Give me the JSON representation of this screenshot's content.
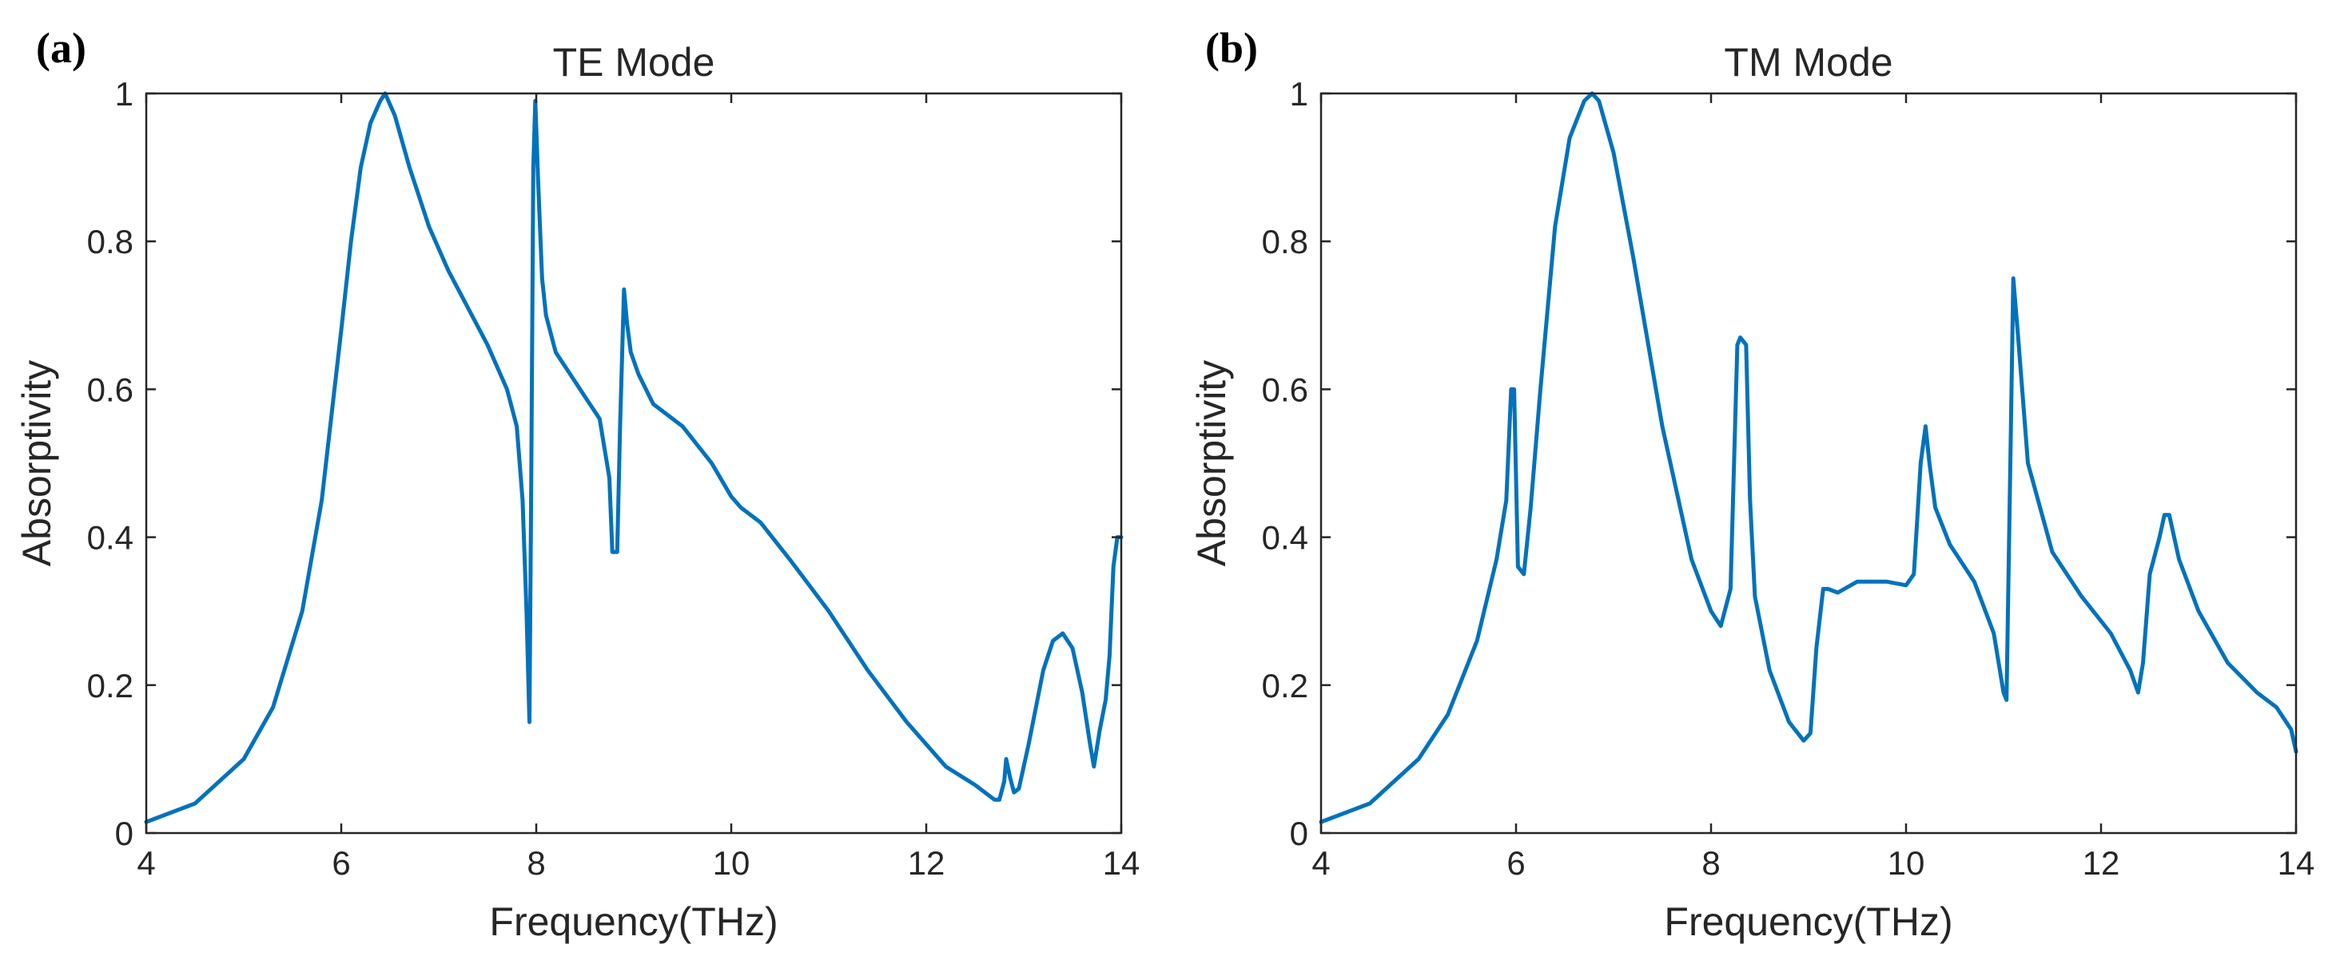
{
  "figure": {
    "panels": [
      "(a)",
      "(b)"
    ]
  },
  "chart_data": [
    {
      "type": "line",
      "panel_label": "(a)",
      "title": "TE Mode",
      "xlabel": "Frequency(THz)",
      "ylabel": "Absorptivity",
      "xlim": [
        4,
        14
      ],
      "ylim": [
        0,
        1
      ],
      "xticks": [
        4,
        6,
        8,
        10,
        12,
        14
      ],
      "xtick_labels": [
        "4",
        "6",
        "8",
        "10",
        "12",
        "14"
      ],
      "yticks": [
        0,
        0.2,
        0.4,
        0.6,
        0.8,
        1
      ],
      "ytick_labels": [
        "0",
        "0.2",
        "0.4",
        "0.6",
        "0.8",
        "1"
      ],
      "grid": false,
      "series": [
        {
          "name": "TE",
          "color": "#0072bd",
          "x": [
            4.0,
            4.5,
            5.0,
            5.3,
            5.6,
            5.8,
            6.0,
            6.1,
            6.2,
            6.3,
            6.4,
            6.45,
            6.55,
            6.7,
            6.9,
            7.1,
            7.3,
            7.5,
            7.7,
            7.8,
            7.86,
            7.9,
            7.93,
            7.95,
            7.97,
            7.99,
            8.02,
            8.06,
            8.1,
            8.2,
            8.35,
            8.5,
            8.65,
            8.75,
            8.78,
            8.83,
            8.86,
            8.9,
            8.93,
            8.97,
            9.05,
            9.2,
            9.5,
            9.8,
            10.0,
            10.1,
            10.3,
            10.6,
            11.0,
            11.4,
            11.8,
            12.2,
            12.5,
            12.7,
            12.75,
            12.8,
            12.82,
            12.86,
            12.9,
            12.95,
            13.05,
            13.2,
            13.3,
            13.4,
            13.5,
            13.6,
            13.68,
            13.72,
            13.78,
            13.84,
            13.88,
            13.92,
            13.96,
            14.0
          ],
          "y": [
            0.015,
            0.04,
            0.1,
            0.17,
            0.3,
            0.45,
            0.68,
            0.8,
            0.9,
            0.96,
            0.99,
            1.0,
            0.97,
            0.9,
            0.82,
            0.76,
            0.71,
            0.66,
            0.6,
            0.55,
            0.45,
            0.3,
            0.15,
            0.5,
            0.9,
            0.99,
            0.88,
            0.75,
            0.7,
            0.65,
            0.62,
            0.59,
            0.56,
            0.48,
            0.38,
            0.38,
            0.55,
            0.735,
            0.69,
            0.65,
            0.62,
            0.58,
            0.55,
            0.5,
            0.455,
            0.44,
            0.42,
            0.37,
            0.3,
            0.22,
            0.15,
            0.09,
            0.065,
            0.045,
            0.045,
            0.07,
            0.1,
            0.075,
            0.055,
            0.06,
            0.12,
            0.22,
            0.26,
            0.27,
            0.25,
            0.19,
            0.12,
            0.09,
            0.14,
            0.18,
            0.24,
            0.36,
            0.4,
            0.4
          ]
        }
      ]
    },
    {
      "type": "line",
      "panel_label": "(b)",
      "title": "TM Mode",
      "xlabel": "Frequency(THz)",
      "ylabel": "Absorptivity",
      "xlim": [
        4,
        14
      ],
      "ylim": [
        0,
        1
      ],
      "xticks": [
        4,
        6,
        8,
        10,
        12,
        14
      ],
      "xtick_labels": [
        "4",
        "6",
        "8",
        "10",
        "12",
        "14"
      ],
      "yticks": [
        0,
        0.2,
        0.4,
        0.6,
        0.8,
        1
      ],
      "ytick_labels": [
        "0",
        "0.2",
        "0.4",
        "0.6",
        "0.8",
        "1"
      ],
      "grid": false,
      "series": [
        {
          "name": "TM",
          "color": "#0072bd",
          "x": [
            4.0,
            4.5,
            5.0,
            5.3,
            5.6,
            5.8,
            5.9,
            5.95,
            5.98,
            6.02,
            6.08,
            6.15,
            6.25,
            6.4,
            6.55,
            6.7,
            6.78,
            6.85,
            7.0,
            7.2,
            7.5,
            7.8,
            8.0,
            8.1,
            8.2,
            8.27,
            8.3,
            8.36,
            8.4,
            8.45,
            8.6,
            8.8,
            8.95,
            9.02,
            9.08,
            9.15,
            9.2,
            9.3,
            9.5,
            9.8,
            10.0,
            10.08,
            10.15,
            10.2,
            10.24,
            10.3,
            10.45,
            10.7,
            10.9,
            11.0,
            11.03,
            11.07,
            11.1,
            11.15,
            11.25,
            11.5,
            11.8,
            12.1,
            12.3,
            12.38,
            12.43,
            12.5,
            12.6,
            12.65,
            12.7,
            12.8,
            13.0,
            13.3,
            13.6,
            13.8,
            13.95,
            14.0
          ],
          "y": [
            0.015,
            0.04,
            0.1,
            0.16,
            0.26,
            0.37,
            0.45,
            0.6,
            0.6,
            0.36,
            0.35,
            0.44,
            0.6,
            0.82,
            0.94,
            0.99,
            1.0,
            0.99,
            0.92,
            0.78,
            0.55,
            0.37,
            0.3,
            0.28,
            0.33,
            0.66,
            0.67,
            0.66,
            0.45,
            0.32,
            0.22,
            0.15,
            0.125,
            0.135,
            0.25,
            0.33,
            0.33,
            0.325,
            0.34,
            0.34,
            0.335,
            0.35,
            0.5,
            0.55,
            0.5,
            0.44,
            0.39,
            0.34,
            0.27,
            0.19,
            0.18,
            0.5,
            0.75,
            0.67,
            0.5,
            0.38,
            0.32,
            0.27,
            0.22,
            0.19,
            0.23,
            0.35,
            0.4,
            0.43,
            0.43,
            0.37,
            0.3,
            0.23,
            0.19,
            0.17,
            0.14,
            0.11
          ]
        }
      ]
    }
  ]
}
